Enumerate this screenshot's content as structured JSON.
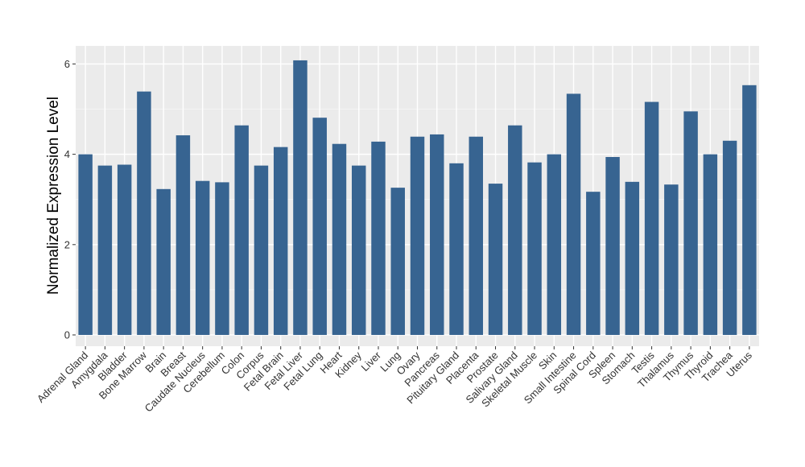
{
  "chart_data": {
    "type": "bar",
    "title": "",
    "xlabel": "",
    "ylabel": "Normalized Expression Level",
    "ylim": [
      -0.25,
      6.4
    ],
    "yticks": [
      0,
      2,
      4,
      6
    ],
    "grid": true,
    "bar_color": "#376491",
    "panel_color": "#ebebeb",
    "categories": [
      "Adrenal Gland",
      "Amygdala",
      "Bladder",
      "Bone Marrow",
      "Brain",
      "Breast",
      "Caudate Nucleus",
      "Cerebellum",
      "Colon",
      "Corpus",
      "Fetal Brain",
      "Fetal Liver",
      "Fetal Lung",
      "Heart",
      "Kidney",
      "Liver",
      "Lung",
      "Ovary",
      "Pancreas",
      "Pituitary Gland",
      "Placenta",
      "Prostate",
      "Salivary Gland",
      "Skeletal Muscle",
      "Skin",
      "Small Intestine",
      "Spinal Cord",
      "Spleen",
      "Stomach",
      "Testis",
      "Thalamus",
      "Thymus",
      "Thyroid",
      "Trachea",
      "Uterus"
    ],
    "values": [
      4.0,
      3.75,
      3.77,
      5.39,
      3.23,
      4.42,
      3.41,
      3.38,
      4.64,
      3.75,
      4.16,
      6.08,
      4.81,
      4.23,
      3.75,
      4.28,
      3.26,
      4.39,
      4.44,
      3.8,
      4.39,
      3.35,
      4.64,
      3.82,
      4.0,
      5.34,
      3.17,
      3.94,
      3.39,
      5.16,
      3.33,
      4.95,
      4.0,
      4.3,
      5.53
    ]
  }
}
